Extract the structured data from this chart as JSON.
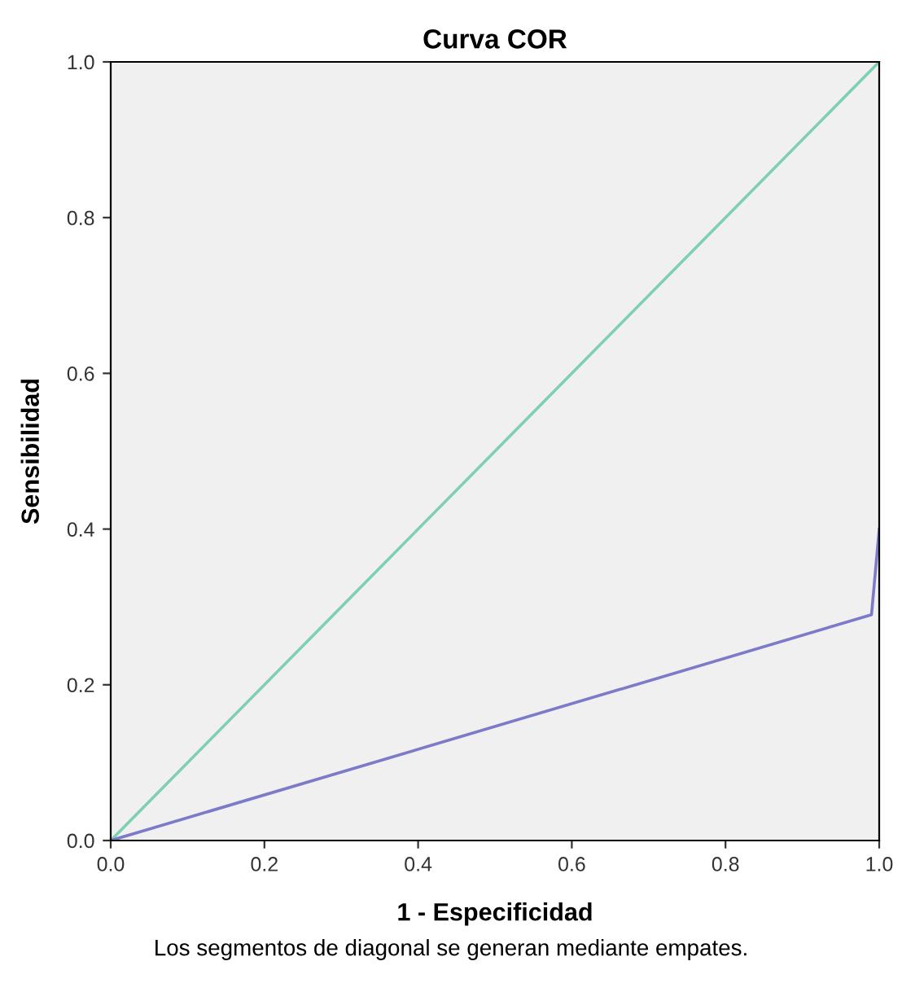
{
  "chart_data": {
    "type": "line",
    "title": "Curva COR",
    "xlabel": "1 - Especificidad",
    "ylabel": "Sensibilidad",
    "xlim": [
      0,
      1
    ],
    "ylim": [
      0,
      1
    ],
    "xticks": [
      {
        "value": 0,
        "label": "0.0"
      },
      {
        "value": 0.2,
        "label": "0.2"
      },
      {
        "value": 0.4,
        "label": "0.4"
      },
      {
        "value": 0.6,
        "label": "0.6"
      },
      {
        "value": 0.8,
        "label": "0.8"
      },
      {
        "value": 1,
        "label": "1.0"
      }
    ],
    "yticks": [
      {
        "value": 0,
        "label": "0.0"
      },
      {
        "value": 0.2,
        "label": "0.2"
      },
      {
        "value": 0.4,
        "label": "0.4"
      },
      {
        "value": 0.6,
        "label": "0.6"
      },
      {
        "value": 0.8,
        "label": "0.8"
      },
      {
        "value": 1,
        "label": "1.0"
      }
    ],
    "series": [
      {
        "color": "#7fcfb2",
        "x": [
          0,
          1
        ],
        "values": [
          0,
          1
        ]
      },
      {
        "color": "#7b7bc9",
        "x": [
          0,
          0.99,
          1
        ],
        "values": [
          0,
          0.29,
          0.4
        ]
      }
    ],
    "grid": false,
    "marker": "none",
    "line_style": "solid",
    "annotations": [
      "Los segmentos de diagonal se generan mediante empates."
    ]
  }
}
